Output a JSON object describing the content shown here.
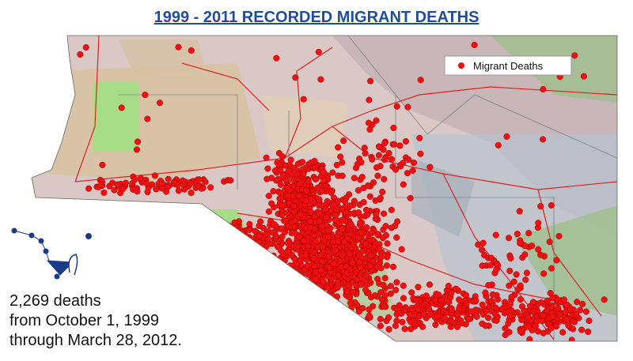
{
  "title": "1999 - 2011 RECORDED MIGRANT DEATHS",
  "legend": {
    "label": "Migrant Deaths"
  },
  "annotation": {
    "lines": [
      "2,269 deaths",
      "from October 1, 1999",
      "through March 28, 2012."
    ]
  }
}
